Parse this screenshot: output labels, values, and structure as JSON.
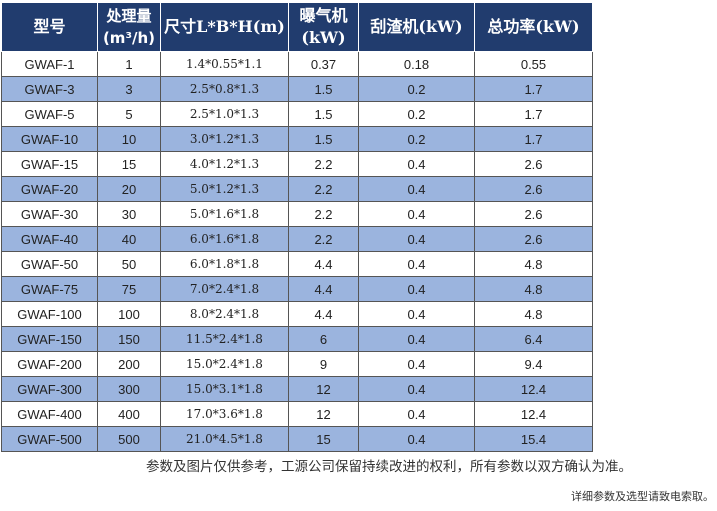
{
  "table": {
    "headers": [
      {
        "lines": [
          "型号"
        ]
      },
      {
        "lines": [
          "处理量",
          "(m³/h)"
        ]
      },
      {
        "lines": [
          "尺寸L*B*H(m)"
        ]
      },
      {
        "lines": [
          "曝气机",
          "(kW)"
        ]
      },
      {
        "lines": [
          "刮渣机(kW)"
        ]
      },
      {
        "lines": [
          "总功率(kW)"
        ]
      }
    ],
    "rows": [
      [
        "GWAF-1",
        "1",
        "1.4*0.55*1.1",
        "0.37",
        "0.18",
        "0.55"
      ],
      [
        "GWAF-3",
        "3",
        "2.5*0.8*1.3",
        "1.5",
        "0.2",
        "1.7"
      ],
      [
        "GWAF-5",
        "5",
        "2.5*1.0*1.3",
        "1.5",
        "0.2",
        "1.7"
      ],
      [
        "GWAF-10",
        "10",
        "3.0*1.2*1.3",
        "1.5",
        "0.2",
        "1.7"
      ],
      [
        "GWAF-15",
        "15",
        "4.0*1.2*1.3",
        "2.2",
        "0.4",
        "2.6"
      ],
      [
        "GWAF-20",
        "20",
        "5.0*1.2*1.3",
        "2.2",
        "0.4",
        "2.6"
      ],
      [
        "GWAF-30",
        "30",
        "5.0*1.6*1.8",
        "2.2",
        "0.4",
        "2.6"
      ],
      [
        "GWAF-40",
        "40",
        "6.0*1.6*1.8",
        "2.2",
        "0.4",
        "2.6"
      ],
      [
        "GWAF-50",
        "50",
        "6.0*1.8*1.8",
        "4.4",
        "0.4",
        "4.8"
      ],
      [
        "GWAF-75",
        "75",
        "7.0*2.4*1.8",
        "4.4",
        "0.4",
        "4.8"
      ],
      [
        "GWAF-100",
        "100",
        "8.0*2.4*1.8",
        "4.4",
        "0.4",
        "4.8"
      ],
      [
        "GWAF-150",
        "150",
        "11.5*2.4*1.8",
        "6",
        "0.4",
        "6.4"
      ],
      [
        "GWAF-200",
        "200",
        "15.0*2.4*1.8",
        "9",
        "0.4",
        "9.4"
      ],
      [
        "GWAF-300",
        "300",
        "15.0*3.1*1.8",
        "12",
        "0.4",
        "12.4"
      ],
      [
        "GWAF-400",
        "400",
        "17.0*3.6*1.8",
        "12",
        "0.4",
        "12.4"
      ],
      [
        "GWAF-500",
        "500",
        "21.0*4.5*1.8",
        "15",
        "0.4",
        "15.4"
      ]
    ]
  },
  "notes": {
    "disclaimer": "参数及图片仅供参考，工源公司保留持续改进的权利，所有参数以双方确认为准。",
    "contact": "详细参数及选型请致电索取。"
  },
  "colors": {
    "header_bg": "#213c6e",
    "alt_row_bg": "#9bb4de",
    "plain_row_bg": "#ffffff"
  }
}
